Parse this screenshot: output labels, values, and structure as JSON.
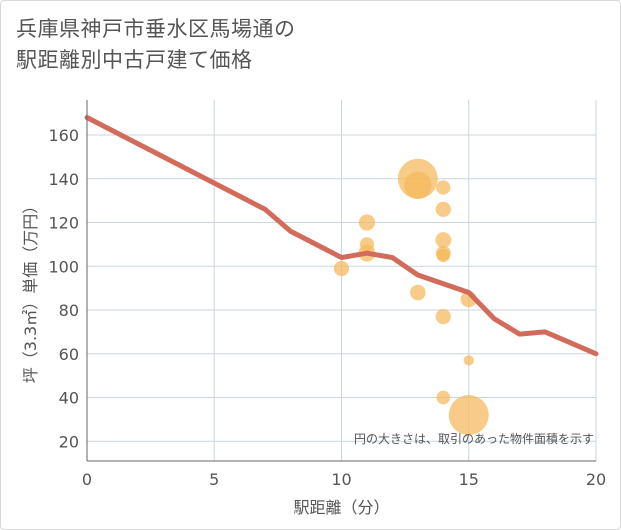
{
  "title_lines": [
    "兵庫県神戸市垂水区馬場通の",
    "駅距離別中古戸建て価格"
  ],
  "chart_data": {
    "type": "scatter",
    "title": "兵庫県神戸市垂水区馬場通の駅距離別中古戸建て価格",
    "xlabel": "駅距離（分）",
    "ylabel": "坪（3.3㎡）単価（万円）",
    "xlim": [
      0,
      20
    ],
    "ylim": [
      11,
      176
    ],
    "x_ticks": [
      0,
      5,
      10,
      15,
      20
    ],
    "y_ticks": [
      20,
      40,
      60,
      80,
      100,
      120,
      140,
      160
    ],
    "grid": true,
    "note": "円の大きさは、取引のあった物件面積を示す",
    "line_color": "#d36b5b",
    "bubble_color": "#f5b85a",
    "trend_line": {
      "x": [
        0,
        1,
        2,
        3,
        4,
        5,
        6,
        7,
        8,
        9,
        10,
        11,
        12,
        13,
        14,
        15,
        16,
        17,
        18,
        19,
        20
      ],
      "y": [
        168,
        162,
        156,
        150,
        144,
        138,
        132,
        126,
        116,
        110,
        104,
        106,
        104,
        96,
        92,
        88,
        76,
        69,
        70,
        65,
        60
      ]
    },
    "bubbles": [
      {
        "x": 10,
        "y": 99,
        "size": 0.25
      },
      {
        "x": 11,
        "y": 120,
        "size": 0.28
      },
      {
        "x": 11,
        "y": 110,
        "size": 0.22
      },
      {
        "x": 11,
        "y": 106,
        "size": 0.3
      },
      {
        "x": 13,
        "y": 140,
        "size": 1.0
      },
      {
        "x": 13,
        "y": 137,
        "size": 0.62
      },
      {
        "x": 13,
        "y": 88,
        "size": 0.26
      },
      {
        "x": 14,
        "y": 136,
        "size": 0.22
      },
      {
        "x": 14,
        "y": 126,
        "size": 0.25
      },
      {
        "x": 14,
        "y": 112,
        "size": 0.27
      },
      {
        "x": 14,
        "y": 106,
        "size": 0.24
      },
      {
        "x": 14,
        "y": 105,
        "size": 0.2
      },
      {
        "x": 14,
        "y": 77,
        "size": 0.25
      },
      {
        "x": 14,
        "y": 40,
        "size": 0.2
      },
      {
        "x": 15,
        "y": 85,
        "size": 0.28
      },
      {
        "x": 15,
        "y": 57,
        "size": 0.1
      },
      {
        "x": 15,
        "y": 32,
        "size": 1.0
      }
    ]
  }
}
